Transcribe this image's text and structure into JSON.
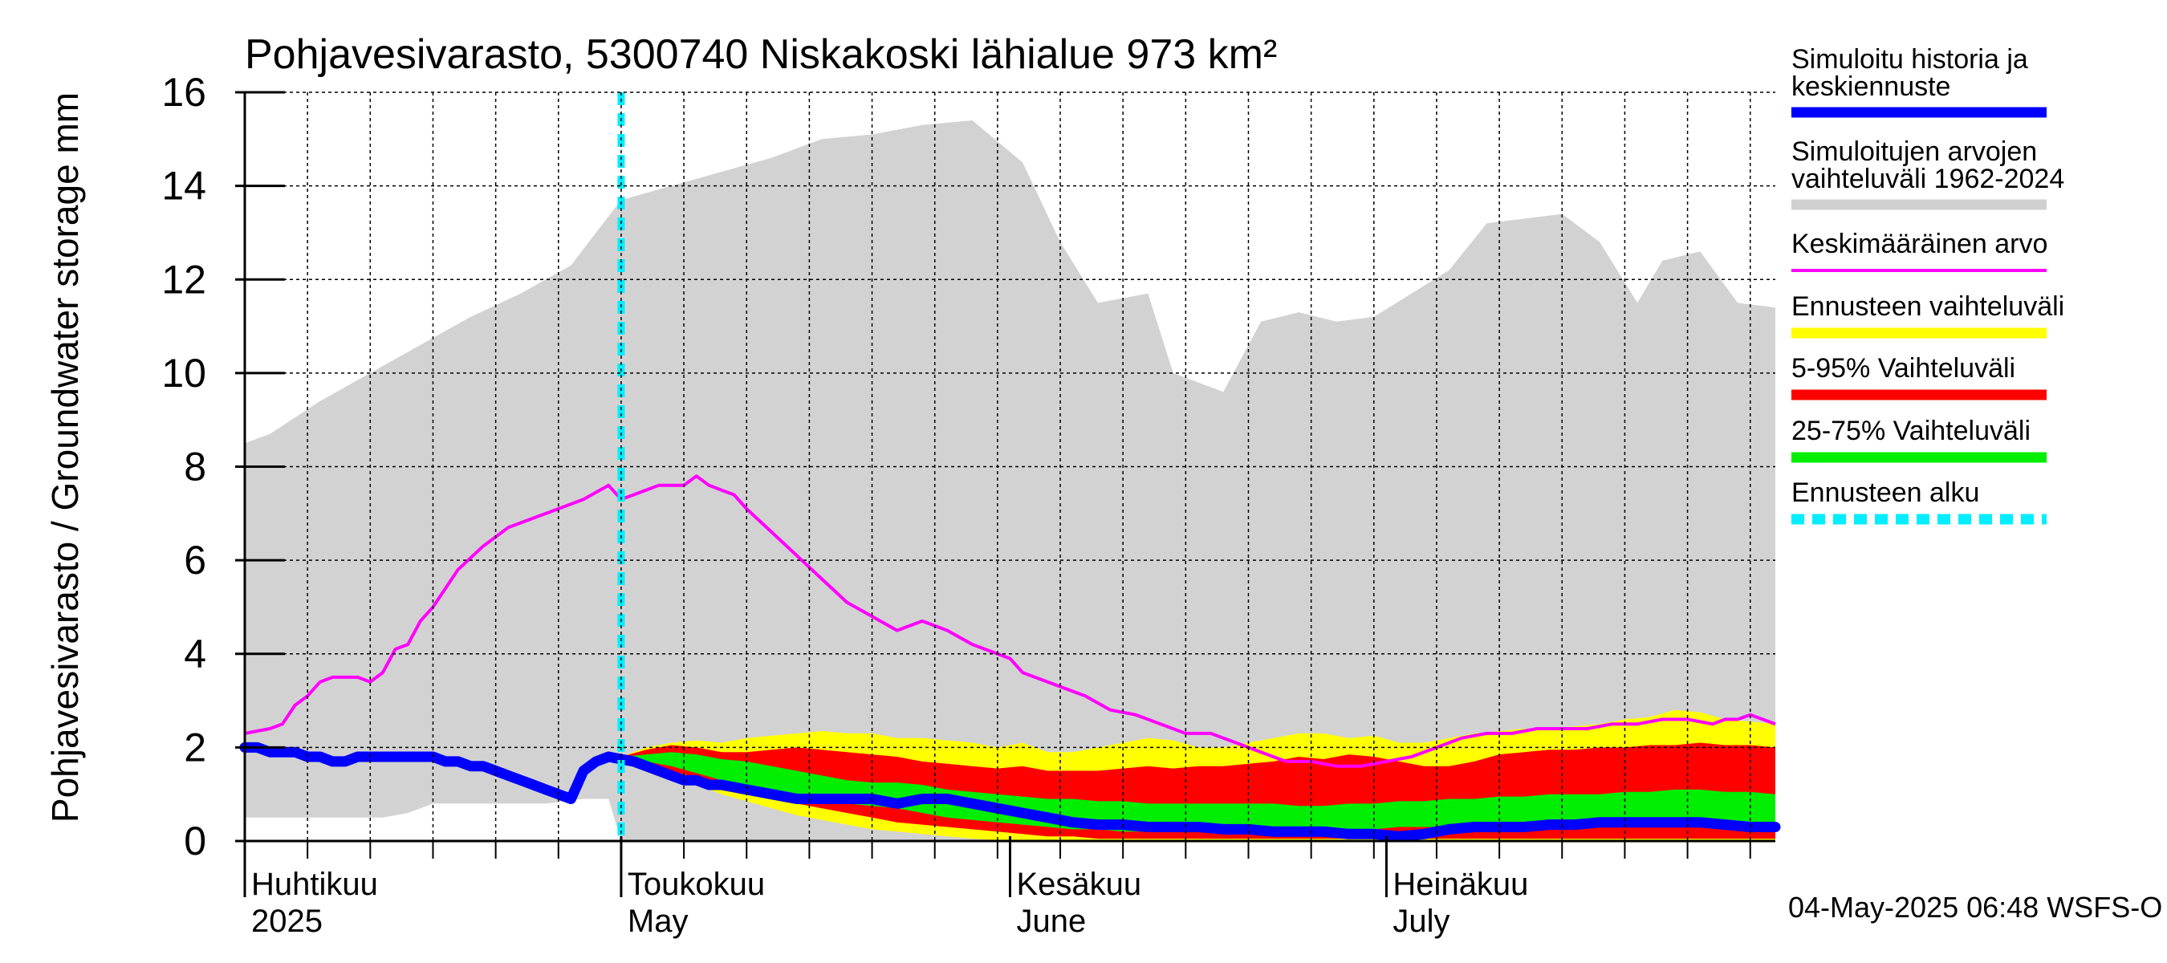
{
  "chart_data": {
    "type": "area",
    "title": "Pohjavesivarasto, 5300740 Niskakoski lähialue 973 km²",
    "ylabel": "Pohjavesivarasto / Groundwater storage   mm",
    "ylim": [
      0,
      16
    ],
    "yticks": [
      0,
      2,
      4,
      6,
      8,
      10,
      12,
      14,
      16
    ],
    "xlim": [
      0,
      122
    ],
    "grid": true,
    "forecast_start_day": 30,
    "month_labels": [
      {
        "fi": "Huhtikuu",
        "en": "2025",
        "day": 0
      },
      {
        "fi": "Toukokuu",
        "en": "May",
        "day": 30
      },
      {
        "fi": "Kesäkuu",
        "en": "June",
        "day": 61
      },
      {
        "fi": "Heinäkuu",
        "en": "July",
        "day": 91
      }
    ],
    "legend": [
      {
        "label": "Simuloitu historia ja keskiennuste",
        "color": "#0000ff",
        "style": "thick"
      },
      {
        "label": "Simuloitujen arvojen vaihteluväli 1962-2024",
        "color": "#d0d0d0",
        "style": "thick"
      },
      {
        "label": "Keskimääräinen arvo",
        "color": "#ff00ff",
        "style": "thin"
      },
      {
        "label": "Ennusteen vaihteluväli",
        "color": "#ffff00",
        "style": "thick"
      },
      {
        "label": "5-95% Vaihteluväli",
        "color": "#ff0000",
        "style": "thick"
      },
      {
        "label": "25-75% Vaihteluväli",
        "color": "#00ee00",
        "style": "thick"
      },
      {
        "label": "Ennusteen alku",
        "color": "#00eeff",
        "style": "dashed"
      }
    ],
    "footer": "04-May-2025 06:48 WSFS-O",
    "series": {
      "hist_range_upper": {
        "x": [
          0,
          2,
          6,
          10,
          14,
          18,
          22,
          26,
          30,
          34,
          38,
          42,
          46,
          50,
          54,
          58,
          62,
          65,
          68,
          72,
          74,
          78,
          81,
          84,
          87,
          90,
          93,
          96,
          99,
          102,
          105,
          108,
          111,
          113,
          116,
          119,
          122
        ],
        "y": [
          8.5,
          8.7,
          9.4,
          10.0,
          10.6,
          11.2,
          11.7,
          12.3,
          13.7,
          14.0,
          14.3,
          14.6,
          15.0,
          15.1,
          15.3,
          15.4,
          14.5,
          12.8,
          11.5,
          11.7,
          10.0,
          9.6,
          11.1,
          11.3,
          11.1,
          11.2,
          11.7,
          12.2,
          13.2,
          13.3,
          13.4,
          12.8,
          11.5,
          12.4,
          12.6,
          11.5,
          11.4
        ]
      },
      "hist_range_lower": {
        "x": [
          0,
          4,
          8,
          11,
          13,
          15,
          17,
          20,
          24,
          27,
          29,
          30,
          33,
          36,
          122
        ],
        "y": [
          0.5,
          0.5,
          0.5,
          0.5,
          0.6,
          0.8,
          0.8,
          0.8,
          0.8,
          0.9,
          0.9,
          0.0,
          0.0,
          0.0,
          0.0
        ]
      },
      "mean": {
        "x": [
          0,
          2,
          3,
          4,
          5,
          6,
          7,
          9,
          10,
          11,
          12,
          13,
          14,
          15,
          17,
          19,
          21,
          23,
          25,
          27,
          29,
          30,
          31,
          33,
          35,
          36,
          37,
          38,
          39,
          40,
          42,
          44,
          46,
          48,
          50,
          52,
          54,
          56,
          58,
          60,
          61,
          62,
          64,
          65,
          67,
          69,
          71,
          73,
          75,
          77,
          79,
          81,
          83,
          85,
          87,
          89,
          91,
          93,
          95,
          97,
          99,
          101,
          103,
          105,
          107,
          109,
          111,
          113,
          115,
          117,
          118,
          119,
          120,
          121,
          122
        ],
        "y": [
          2.3,
          2.4,
          2.5,
          2.9,
          3.1,
          3.4,
          3.5,
          3.5,
          3.4,
          3.6,
          4.1,
          4.2,
          4.7,
          5.0,
          5.8,
          6.3,
          6.7,
          6.9,
          7.1,
          7.3,
          7.6,
          7.3,
          7.4,
          7.6,
          7.6,
          7.8,
          7.6,
          7.5,
          7.4,
          7.1,
          6.6,
          6.1,
          5.6,
          5.1,
          4.8,
          4.5,
          4.7,
          4.5,
          4.2,
          4.0,
          3.9,
          3.6,
          3.4,
          3.3,
          3.1,
          2.8,
          2.7,
          2.5,
          2.3,
          2.3,
          2.1,
          1.9,
          1.7,
          1.7,
          1.6,
          1.6,
          1.7,
          1.8,
          2.0,
          2.2,
          2.3,
          2.3,
          2.4,
          2.4,
          2.4,
          2.5,
          2.5,
          2.6,
          2.6,
          2.5,
          2.6,
          2.6,
          2.7,
          2.6,
          2.5
        ]
      },
      "history_and_median": {
        "x": [
          0,
          1,
          2,
          3,
          4,
          5,
          6,
          7,
          8,
          9,
          10,
          11,
          12,
          13,
          14,
          15,
          16,
          17,
          18,
          19,
          20,
          21,
          22,
          23,
          24,
          25,
          26,
          27,
          28,
          29,
          30,
          31,
          32,
          33,
          34,
          35,
          36,
          37,
          38,
          40,
          42,
          44,
          46,
          48,
          50,
          52,
          54,
          56,
          58,
          60,
          62,
          64,
          66,
          68,
          70,
          72,
          74,
          76,
          78,
          80,
          82,
          84,
          86,
          88,
          90,
          92,
          94,
          96,
          98,
          100,
          102,
          104,
          106,
          108,
          110,
          112,
          114,
          116,
          118,
          120,
          122
        ],
        "y": [
          2.0,
          2.0,
          1.9,
          1.9,
          1.9,
          1.8,
          1.8,
          1.7,
          1.7,
          1.8,
          1.8,
          1.8,
          1.8,
          1.8,
          1.8,
          1.8,
          1.7,
          1.7,
          1.6,
          1.6,
          1.5,
          1.4,
          1.3,
          1.2,
          1.1,
          1.0,
          0.9,
          1.5,
          1.7,
          1.8,
          1.75,
          1.7,
          1.6,
          1.5,
          1.4,
          1.3,
          1.3,
          1.2,
          1.2,
          1.1,
          1.0,
          0.9,
          0.9,
          0.9,
          0.9,
          0.8,
          0.9,
          0.9,
          0.8,
          0.7,
          0.6,
          0.5,
          0.4,
          0.35,
          0.35,
          0.3,
          0.3,
          0.3,
          0.25,
          0.25,
          0.2,
          0.2,
          0.2,
          0.15,
          0.15,
          0.1,
          0.15,
          0.25,
          0.3,
          0.3,
          0.3,
          0.35,
          0.35,
          0.4,
          0.4,
          0.4,
          0.4,
          0.4,
          0.35,
          0.3,
          0.3
        ]
      },
      "fc_x": [
        30,
        32,
        34,
        36,
        38,
        40,
        42,
        44,
        46,
        48,
        50,
        52,
        54,
        56,
        58,
        60,
        62,
        64,
        66,
        68,
        70,
        72,
        74,
        76,
        78,
        80,
        82,
        84,
        86,
        88,
        90,
        92,
        94,
        96,
        98,
        100,
        102,
        104,
        106,
        108,
        110,
        112,
        114,
        116,
        118,
        120,
        122
      ],
      "fc_min": [
        1.8,
        1.6,
        1.4,
        1.2,
        1.0,
        0.85,
        0.7,
        0.55,
        0.45,
        0.35,
        0.25,
        0.2,
        0.15,
        0.1,
        0.05,
        0.02,
        0.0,
        0.0,
        0.0,
        0.0,
        0.0,
        0.0,
        0.0,
        0.0,
        0.0,
        0.0,
        0.0,
        0.0,
        0.0,
        0.0,
        0.0,
        0.0,
        0.0,
        0.0,
        0.0,
        0.0,
        0.0,
        0.0,
        0.0,
        0.0,
        0.0,
        0.0,
        0.0,
        0.0,
        0.0,
        0.0,
        0.0
      ],
      "fc_p5": [
        1.8,
        1.65,
        1.5,
        1.35,
        1.2,
        1.05,
        0.9,
        0.8,
        0.7,
        0.6,
        0.5,
        0.4,
        0.35,
        0.3,
        0.25,
        0.2,
        0.15,
        0.1,
        0.1,
        0.05,
        0.05,
        0.05,
        0.05,
        0.05,
        0.05,
        0.05,
        0.05,
        0.05,
        0.05,
        0.05,
        0.05,
        0.05,
        0.05,
        0.05,
        0.05,
        0.05,
        0.05,
        0.05,
        0.05,
        0.05,
        0.05,
        0.05,
        0.05,
        0.05,
        0.05,
        0.05,
        0.05
      ],
      "fc_p25": [
        1.8,
        1.7,
        1.6,
        1.45,
        1.3,
        1.2,
        1.1,
        1.0,
        0.9,
        0.8,
        0.75,
        0.7,
        0.6,
        0.5,
        0.45,
        0.4,
        0.35,
        0.3,
        0.25,
        0.25,
        0.2,
        0.2,
        0.2,
        0.2,
        0.2,
        0.2,
        0.2,
        0.2,
        0.2,
        0.25,
        0.25,
        0.3,
        0.3,
        0.3,
        0.35,
        0.35,
        0.35,
        0.35,
        0.4,
        0.4,
        0.4,
        0.4,
        0.4,
        0.35,
        0.35,
        0.3,
        0.3
      ],
      "fc_p75": [
        1.8,
        1.85,
        1.9,
        1.85,
        1.75,
        1.7,
        1.6,
        1.5,
        1.4,
        1.3,
        1.25,
        1.25,
        1.2,
        1.1,
        1.05,
        1.0,
        0.95,
        0.9,
        0.9,
        0.85,
        0.85,
        0.8,
        0.8,
        0.8,
        0.8,
        0.8,
        0.8,
        0.75,
        0.75,
        0.8,
        0.8,
        0.85,
        0.85,
        0.9,
        0.9,
        0.95,
        0.95,
        1.0,
        1.0,
        1.0,
        1.05,
        1.05,
        1.1,
        1.1,
        1.05,
        1.05,
        1.0
      ],
      "fc_p95": [
        1.8,
        1.95,
        2.05,
        2.0,
        1.9,
        1.9,
        1.95,
        2.0,
        1.95,
        1.9,
        1.85,
        1.8,
        1.7,
        1.65,
        1.6,
        1.55,
        1.6,
        1.5,
        1.5,
        1.5,
        1.55,
        1.6,
        1.55,
        1.6,
        1.6,
        1.65,
        1.7,
        1.8,
        1.75,
        1.85,
        1.8,
        1.7,
        1.6,
        1.6,
        1.7,
        1.85,
        1.9,
        1.95,
        1.95,
        2.0,
        2.0,
        2.05,
        2.05,
        2.1,
        2.05,
        2.05,
        2.0
      ],
      "fc_max": [
        1.8,
        2.0,
        2.1,
        2.15,
        2.1,
        2.2,
        2.25,
        2.3,
        2.35,
        2.3,
        2.3,
        2.2,
        2.2,
        2.15,
        2.1,
        2.0,
        2.1,
        1.9,
        1.9,
        2.0,
        2.1,
        2.2,
        2.15,
        2.0,
        2.0,
        2.1,
        2.2,
        2.3,
        2.3,
        2.2,
        2.25,
        2.1,
        2.1,
        2.2,
        2.3,
        2.35,
        2.4,
        2.4,
        2.45,
        2.5,
        2.6,
        2.65,
        2.8,
        2.75,
        2.6,
        2.55,
        2.5
      ]
    }
  }
}
